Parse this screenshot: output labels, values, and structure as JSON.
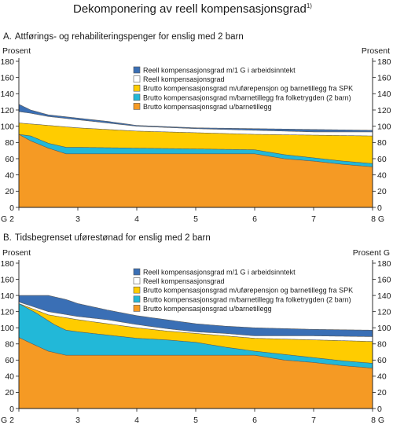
{
  "title": "Dekomponering av reell kompensasjonsgrad",
  "title_note": "1)",
  "chart_data": [
    {
      "type": "area",
      "panel_label": "A.",
      "title": "Attførings- og rehabiliteringspenger for enslig med 2 barn",
      "ylabel_left": "Prosent",
      "ylabel_right": "Prosent",
      "ylim": [
        0,
        180
      ],
      "yticks": [
        0,
        20,
        40,
        60,
        80,
        100,
        120,
        140,
        160,
        180
      ],
      "x_tick_labels": [
        "G 2",
        "3",
        "4",
        "5",
        "6",
        "7",
        "8 G"
      ],
      "x_tick_values": [
        2,
        3,
        4,
        5,
        6,
        7,
        8
      ],
      "xlim": [
        2,
        8
      ],
      "grid": false,
      "legend_position": "top-right",
      "series": [
        {
          "name": "Reell kompensasjonsgrad m/1 G i arbeidsinntekt",
          "color": "#3a6fb5",
          "x": [
            2,
            2.2,
            2.5,
            3,
            3.5,
            4,
            5,
            6,
            7,
            8
          ],
          "y": [
            127,
            120,
            114,
            110,
            106,
            101,
            98,
            97,
            96,
            95
          ]
        },
        {
          "name": "Reell kompensasjonsgrad",
          "color": "#ffffff",
          "x": [
            2,
            2.2,
            2.5,
            3,
            3.5,
            4,
            5,
            6,
            7,
            8
          ],
          "y": [
            118,
            116,
            112,
            108,
            104,
            100,
            97,
            95,
            93,
            93
          ]
        },
        {
          "name": "Brutto kompensasjonsgrad m/uførepensjon og barnetillegg fra SPK",
          "color": "#ffcc00",
          "x": [
            2,
            2.5,
            3,
            3.5,
            4,
            5,
            6,
            7,
            8
          ],
          "y": [
            104,
            101,
            98,
            96,
            94,
            92,
            90,
            89,
            88
          ]
        },
        {
          "name": "Brutto kompensasjonsgrad m/barnetillegg fra folketrygden (2 barn)",
          "color": "#22b8d8",
          "x": [
            2,
            2.2,
            2.5,
            2.8,
            3,
            4,
            5,
            6,
            6.5,
            7,
            7.5,
            8
          ],
          "y": [
            90,
            88,
            79,
            74,
            74,
            73,
            72,
            71,
            65,
            61,
            57,
            54
          ]
        },
        {
          "name": "Brutto kompensasjonsgrad u/barnetillegg",
          "color": "#f59a24",
          "x": [
            2,
            2.2,
            2.5,
            2.8,
            3,
            4,
            5,
            6,
            6.5,
            7,
            7.5,
            8
          ],
          "y": [
            90,
            82,
            73,
            66,
            66,
            66,
            66,
            66,
            60,
            57,
            53,
            50
          ]
        }
      ]
    },
    {
      "type": "area",
      "panel_label": "B.",
      "title": "Tidsbegrenset uførestønad for enslig med 2 barn",
      "ylabel_left": "Prosent",
      "ylabel_right": "Prosent G",
      "ylim": [
        0,
        180
      ],
      "yticks": [
        0,
        20,
        40,
        60,
        80,
        100,
        120,
        140,
        160,
        180
      ],
      "x_tick_labels": [
        "G 2",
        "3",
        "4",
        "5",
        "6",
        "7",
        "8 G"
      ],
      "x_tick_values": [
        2,
        3,
        4,
        5,
        6,
        7,
        8
      ],
      "xlim": [
        2,
        8
      ],
      "grid": false,
      "legend_position": "top-right",
      "series": [
        {
          "name": "Reell kompensasjonsgrad m/1 G i arbeidsinntekt",
          "color": "#3a6fb5",
          "x": [
            2,
            2.5,
            2.8,
            3,
            3.5,
            4,
            4.5,
            5,
            5.5,
            6,
            7,
            8
          ],
          "y": [
            140,
            140,
            135,
            130,
            122,
            115,
            110,
            105,
            102,
            100,
            98,
            97
          ]
        },
        {
          "name": "Reell kompensasjonsgrad",
          "color": "#ffffff",
          "x": [
            2,
            2.5,
            3,
            3.5,
            4,
            4.5,
            5,
            5.5,
            6,
            7,
            8
          ],
          "y": [
            132,
            120,
            114,
            110,
            104,
            99,
            95,
            93,
            90,
            90,
            89
          ]
        },
        {
          "name": "Brutto kompensasjonsgrad m/uførepensjon og barnetillegg fra SPK",
          "color": "#ffcc00",
          "x": [
            2,
            2.5,
            3,
            3.5,
            4,
            4.5,
            5,
            5.5,
            6,
            7,
            8
          ],
          "y": [
            130,
            116,
            110,
            105,
            100,
            96,
            93,
            90,
            87,
            85,
            83
          ]
        },
        {
          "name": "Brutto kompensasjonsgrad m/barnetillegg fra folketrygden (2 barn)",
          "color": "#22b8d8",
          "x": [
            2,
            2.3,
            2.6,
            2.8,
            3,
            3.5,
            4,
            4.5,
            5,
            5.5,
            6,
            6.5,
            7,
            7.5,
            8
          ],
          "y": [
            130,
            118,
            104,
            97,
            95,
            91,
            87,
            85,
            82,
            76,
            71,
            67,
            63,
            59,
            56
          ]
        },
        {
          "name": "Brutto kompensasjonsgrad u/barnetillegg",
          "color": "#f59a24",
          "x": [
            2,
            2.2,
            2.5,
            2.8,
            3,
            4,
            5,
            6,
            6.5,
            7,
            7.5,
            8
          ],
          "y": [
            88,
            81,
            71,
            66,
            66,
            66,
            66,
            66,
            60,
            57,
            53,
            50
          ]
        }
      ]
    }
  ]
}
